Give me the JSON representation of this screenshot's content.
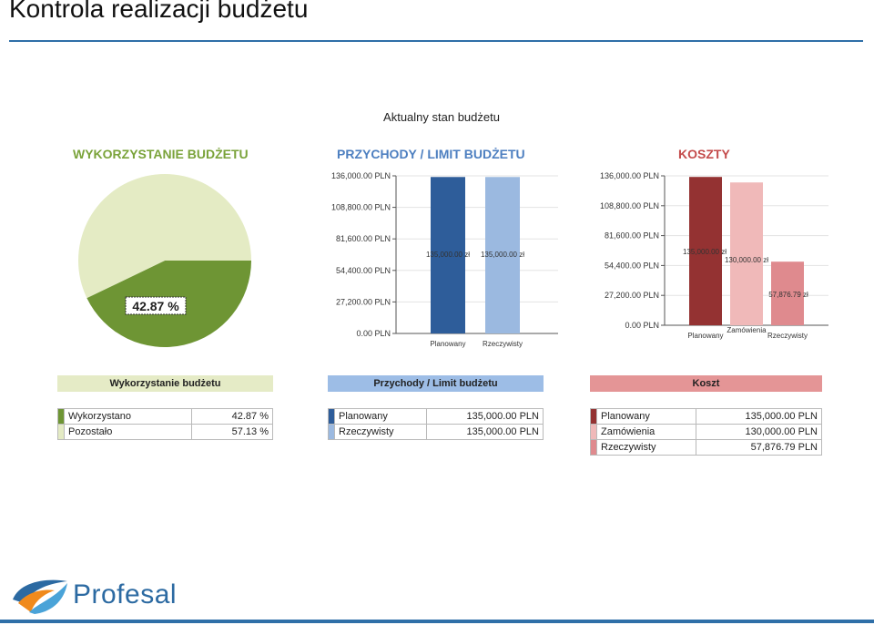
{
  "slide": {
    "title": "Kontrola realizacji budżetu"
  },
  "dashboard": {
    "title": "Aktualny stan budżetu"
  },
  "usage": {
    "title": "WYKORZYSTANIE BUDŻETU",
    "used_pct": 42.87,
    "center_label": "42.87 %",
    "band": "Wykorzystanie budżetu",
    "legend": [
      {
        "label": "Wykorzystano",
        "value": "42.87 %",
        "color": "#6e9534"
      },
      {
        "label": "Pozostało",
        "value": "57.13 %",
        "color": "#e4ebc4"
      }
    ]
  },
  "revenue": {
    "title": "PRZYCHODY / LIMIT BUDŻETU",
    "band": "Przychody / Limit budżetu",
    "legend": [
      {
        "label": "Planowany",
        "value": "135,000.00 PLN",
        "color": "#2e5d9a"
      },
      {
        "label": "Rzeczywisty",
        "value": "135,000.00 PLN",
        "color": "#9bb9e0"
      }
    ]
  },
  "costs": {
    "title": "KOSZTY",
    "band": "Koszt",
    "legend": [
      {
        "label": "Planowany",
        "value": "135,000.00 PLN",
        "color": "#943232"
      },
      {
        "label": "Zamówienia",
        "value": "130,000.00 PLN",
        "color": "#f0b9b9"
      },
      {
        "label": "Rzeczywisty",
        "value": "57,876.79 PLN",
        "color": "#df8a8e"
      }
    ]
  },
  "chart_data": [
    {
      "type": "pie",
      "title": "WYKORZYSTANIE BUDŻETU",
      "categories": [
        "Wykorzystano",
        "Pozostało"
      ],
      "values": [
        42.87,
        57.13
      ],
      "colors": [
        "#6e9534",
        "#e4ebc4"
      ]
    },
    {
      "type": "bar",
      "title": "PRZYCHODY / LIMIT BUDŻETU",
      "categories": [
        "Planowany",
        "Rzeczywisty"
      ],
      "values": [
        135000,
        135000
      ],
      "data_labels": [
        "135,000.00 zł",
        "135,000.00 zł"
      ],
      "colors": [
        "#2e5d9a",
        "#9bb9e0"
      ],
      "yticks": [
        "0.00 PLN",
        "27,200.00 PLN",
        "54,400.00 PLN",
        "81,600.00 PLN",
        "108,800.00 PLN",
        "136,000.00 PLN"
      ],
      "ylim": [
        0,
        136000
      ],
      "grid": true
    },
    {
      "type": "bar",
      "title": "KOSZTY",
      "categories": [
        "Planowany",
        "Zamówienia",
        "Rzeczywisty"
      ],
      "values": [
        135000,
        130000,
        57876.79
      ],
      "data_labels": [
        "135,000.00 zł",
        "130,000.00 zł",
        "57,876.79 zł"
      ],
      "colors": [
        "#943232",
        "#f0b9b9",
        "#df8a8e"
      ],
      "yticks": [
        "0.00 PLN",
        "27,200.00 PLN",
        "54,400.00 PLN",
        "81,600.00 PLN",
        "108,800.00 PLN",
        "136,000.00 PLN"
      ],
      "ylim": [
        0,
        136000
      ],
      "grid": true
    }
  ],
  "brand": {
    "name": "Profesal",
    "accent": "#2f6fa8"
  }
}
